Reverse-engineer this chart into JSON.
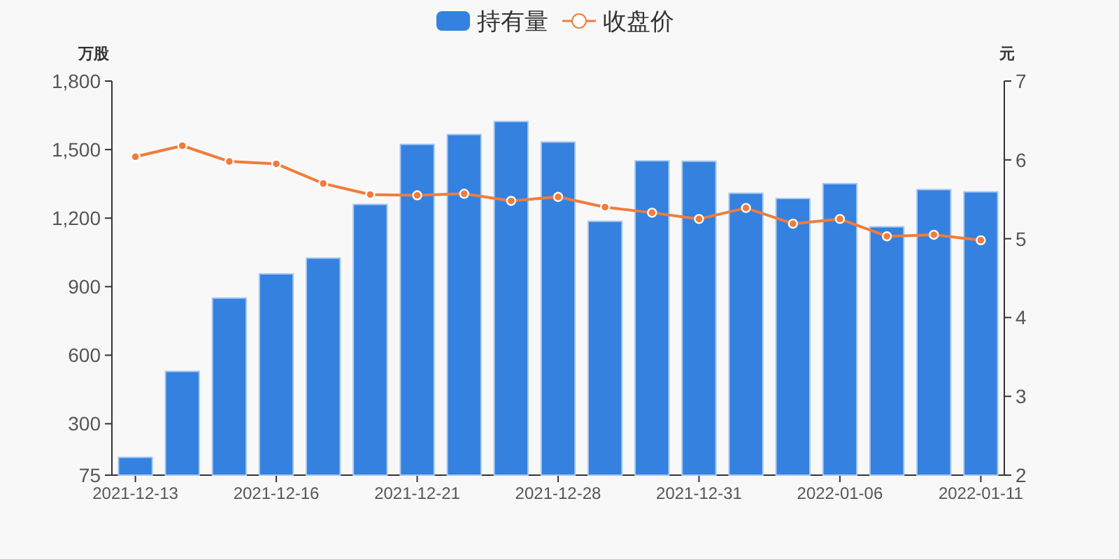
{
  "chart_data": {
    "type": "bar",
    "ylabel": "万股",
    "y2label": "元",
    "legend": "top",
    "grid": false,
    "categories": [
      "2021-12-13",
      null,
      null,
      "2021-12-16",
      null,
      null,
      "2021-12-21",
      null,
      null,
      "2021-12-28",
      null,
      null,
      "2021-12-31",
      null,
      null,
      "2022-01-06",
      null,
      null,
      "2022-01-11"
    ],
    "series": [
      {
        "name": "持有量",
        "color": "#3481e0",
        "values": [
          153,
          529,
          850,
          956,
          1025,
          1260,
          1523,
          1566,
          1623,
          1533,
          1186,
          1451,
          1449,
          1309,
          1286,
          1351,
          1162,
          1325,
          1315
        ]
      },
      {
        "name": "收盘价",
        "type": "line",
        "axis": "y2",
        "marker": "circle",
        "color": "#f07c3c",
        "values": [
          6.04,
          6.18,
          5.98,
          5.95,
          5.7,
          5.56,
          5.55,
          5.57,
          5.48,
          5.53,
          5.4,
          5.33,
          5.25,
          5.39,
          5.19,
          5.25,
          5.03,
          5.05,
          4.98
        ]
      }
    ],
    "ylim": [
      75,
      1800
    ],
    "yticks": [
      75,
      300,
      600,
      900,
      {
        "value": 1200,
        "label": "1,200"
      },
      {
        "value": 1500,
        "label": "1,500"
      },
      {
        "value": 1800,
        "label": "1,800"
      }
    ],
    "y2lim": [
      2,
      7
    ],
    "y2ticks": [
      2,
      3,
      4,
      5,
      6,
      7
    ]
  }
}
